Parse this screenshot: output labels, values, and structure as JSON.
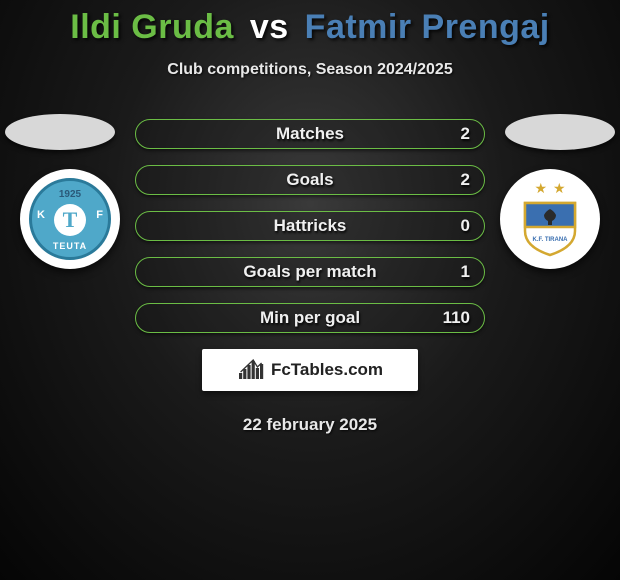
{
  "title": {
    "player1": "Ildi Gruda",
    "vs": "vs",
    "player2": "Fatmir Prengaj",
    "player1_color": "#6bbd45",
    "player2_color": "#4a7fb5",
    "vs_color": "#ffffff"
  },
  "subtitle": "Club competitions, Season 2024/2025",
  "player_ovals": {
    "left_color": "#d8d8d8",
    "right_color": "#d8d8d8"
  },
  "stats": {
    "border_color": "#6bbd45",
    "background": "rgba(20,20,20,0.25)",
    "rows": [
      {
        "label": "Matches",
        "value": "2"
      },
      {
        "label": "Goals",
        "value": "2"
      },
      {
        "label": "Hattricks",
        "value": "0"
      },
      {
        "label": "Goals per match",
        "value": "1"
      },
      {
        "label": "Min per goal",
        "value": "110"
      }
    ]
  },
  "clubs": {
    "left": {
      "name": "TEUTA",
      "year": "1925",
      "letter": "T",
      "kf_left": "K",
      "kf_right": "F",
      "primary_color": "#4fa8c9",
      "border_color": "#2a7a9a"
    },
    "right": {
      "name": "K.F. TIRANA",
      "stars": 2,
      "shield_top_color": "#3a6fb0",
      "shield_bottom_color": "#ffffff",
      "shield_border": "#d4a830"
    }
  },
  "brand": {
    "text": "FcTables.com",
    "chart_bars": [
      6,
      10,
      14,
      18,
      11,
      15
    ]
  },
  "date": "22 february 2025"
}
